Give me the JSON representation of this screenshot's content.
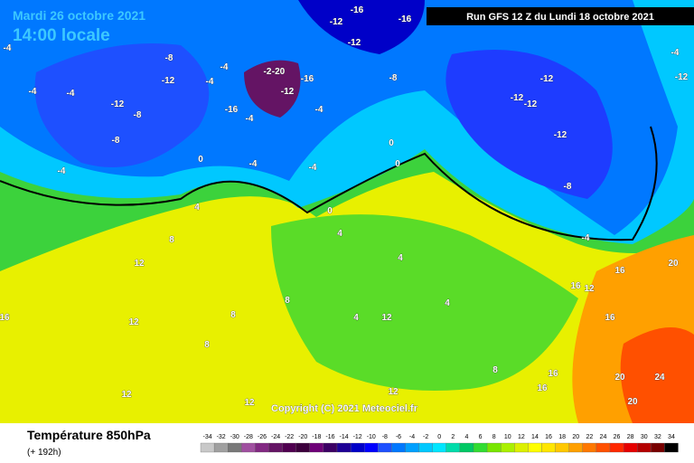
{
  "header": {
    "date": "Mardi 26 octobre 2021",
    "time": "14:00 locale"
  },
  "run": "Run GFS 12 Z du Lundi 18 octobre 2021",
  "copyright": "Copyright (C) 2021 Meteociel.fr",
  "legend": {
    "title": "Température 850hPa",
    "subtitle": "(+ 192h)",
    "values": [
      -34,
      -32,
      -30,
      -28,
      -26,
      -24,
      -22,
      -20,
      -18,
      -16,
      -14,
      -12,
      -10,
      -8,
      -6,
      -4,
      -2,
      0,
      2,
      4,
      6,
      8,
      10,
      12,
      14,
      16,
      18,
      20,
      22,
      24,
      26,
      28,
      30,
      32,
      34
    ],
    "colors": [
      "#c8c8c8",
      "#a0a0a0",
      "#787878",
      "#a050a0",
      "#822882",
      "#641464",
      "#500050",
      "#3c003c",
      "#6e0078",
      "#3c0064",
      "#1e0096",
      "#0000c8",
      "#0000ff",
      "#1e50ff",
      "#0078ff",
      "#00a0ff",
      "#00c8ff",
      "#00e6ff",
      "#00dcaa",
      "#00c864",
      "#32dc32",
      "#78e600",
      "#aaf000",
      "#dcf000",
      "#ffff00",
      "#ffe600",
      "#ffc800",
      "#ffa000",
      "#ff7800",
      "#ff5000",
      "#ff2800",
      "#e60000",
      "#b40000",
      "#780000",
      "#000000"
    ]
  },
  "map_labels": [
    -16,
    -16,
    -12,
    -12,
    -8,
    -12,
    -4,
    -4,
    -2,
    -20,
    -16,
    -12,
    -12,
    -8,
    -4,
    -4,
    -4,
    -8,
    -4,
    -8,
    -12,
    -12,
    -12,
    -12,
    -8,
    -4,
    -4,
    -12,
    -16,
    -4,
    -4,
    -4,
    -4,
    0,
    0,
    0,
    0,
    4,
    8,
    12,
    4,
    4,
    4,
    4,
    8,
    8,
    8,
    8,
    12,
    12,
    12,
    12,
    12,
    16,
    16,
    16,
    16,
    16,
    20,
    20,
    20,
    24,
    12,
    16,
    12
  ]
}
